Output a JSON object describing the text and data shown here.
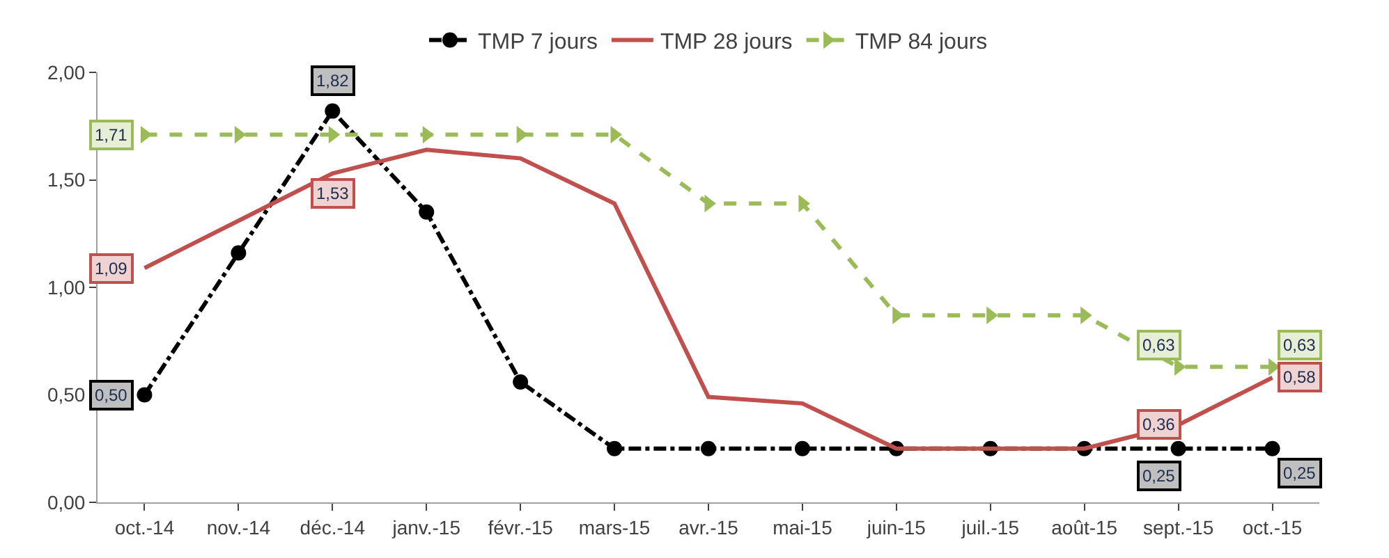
{
  "chart_data": {
    "type": "line",
    "categories": [
      "oct.-14",
      "nov.-14",
      "déc.-14",
      "janv.-15",
      "févr.-15",
      "mars-15",
      "avr.-15",
      "mai-15",
      "juin-15",
      "juil.-15",
      "août-15",
      "sept.-15",
      "oct.-15"
    ],
    "series": [
      {
        "name": "TMP 7 jours",
        "color": "#000000",
        "marker": "circle",
        "line_style": "dashdot",
        "values": [
          0.5,
          1.16,
          1.82,
          1.35,
          0.56,
          0.25,
          0.25,
          0.25,
          0.25,
          0.25,
          0.25,
          0.25,
          0.25
        ],
        "value_labels": [
          "0,50",
          null,
          "1,82",
          null,
          null,
          null,
          null,
          null,
          null,
          null,
          null,
          "0,25",
          "0,25"
        ]
      },
      {
        "name": "TMP 28 jours",
        "color": "#c0504d",
        "marker": "none",
        "line_style": "solid",
        "values": [
          1.09,
          1.31,
          1.53,
          1.64,
          1.6,
          1.39,
          0.49,
          0.46,
          0.25,
          0.25,
          0.25,
          0.36,
          0.58
        ],
        "value_labels": [
          "1,09",
          null,
          "1,53",
          null,
          null,
          null,
          null,
          null,
          null,
          null,
          null,
          "0,36",
          "0,58"
        ]
      },
      {
        "name": "TMP 84 jours",
        "color": "#9bbb59",
        "marker": "triangle",
        "line_style": "dashed",
        "values": [
          1.71,
          1.71,
          1.71,
          1.71,
          1.71,
          1.71,
          1.39,
          1.39,
          0.87,
          0.87,
          0.87,
          0.63,
          0.63
        ],
        "value_labels": [
          "1,71",
          null,
          null,
          null,
          null,
          null,
          null,
          null,
          null,
          null,
          null,
          "0,63",
          "0,63"
        ]
      }
    ],
    "ylim": [
      0,
      2
    ],
    "yticks": [
      {
        "value": 0,
        "label": "0,00"
      },
      {
        "value": 0.5,
        "label": "0,50"
      },
      {
        "value": 1,
        "label": "1,00"
      },
      {
        "value": 1.5,
        "label": "1,50"
      },
      {
        "value": 2,
        "label": "2,00"
      }
    ],
    "legend": "top"
  }
}
